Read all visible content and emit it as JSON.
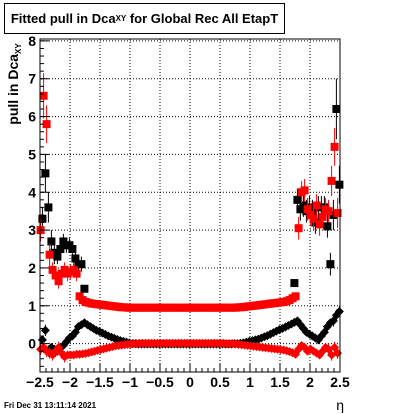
{
  "chart_data": {
    "type": "scatter",
    "title_main": "Fitted pull in Dca",
    "title_sub": "XY",
    "title_rest": " for Global Rec All EtapT",
    "ylabel_main": "pull in Dca",
    "ylabel_sub": "XY",
    "xlabel": "η",
    "xlim": [
      -2.5,
      2.5
    ],
    "ylim": [
      -0.75,
      8.05
    ],
    "x_ticks": [
      -2.5,
      -2,
      -1.5,
      -1,
      -0.5,
      0,
      0.5,
      1,
      1.5,
      2,
      2.5
    ],
    "x_tick_labels": [
      "−2.5",
      "−2",
      "−1.5",
      "−1",
      "−0.5",
      "0",
      "0.5",
      "1",
      "1.5",
      "2",
      "2.5"
    ],
    "y_ticks": [
      0,
      1,
      2,
      3,
      4,
      5,
      6,
      7,
      8
    ],
    "y_tick_labels": [
      "0",
      "1",
      "2",
      "3",
      "4",
      "5",
      "6",
      "7",
      "8"
    ],
    "grid": true,
    "colors": {
      "black": "#000000",
      "red": "#ff0000"
    },
    "series": [
      {
        "color": "#000000",
        "marker": "square",
        "x": [
          -2.46,
          -2.41,
          -2.36,
          -2.31,
          -2.26,
          -2.21,
          -2.16,
          -2.11,
          -2.06,
          -2.01,
          -1.96,
          -1.91,
          -1.86,
          -1.81,
          -1.76,
          1.74,
          1.79,
          1.84,
          1.89,
          1.94,
          1.99,
          2.04,
          2.09,
          2.14,
          2.19,
          2.24,
          2.29,
          2.34,
          2.39,
          2.44,
          2.49
        ],
        "y": [
          3.3,
          4.5,
          3.6,
          2.7,
          2.4,
          2.3,
          2.5,
          2.7,
          2.6,
          2.6,
          2.5,
          2.25,
          2.1,
          2.1,
          1.45,
          1.6,
          3.8,
          3.55,
          3.65,
          3.5,
          3.6,
          3.5,
          3.2,
          3.6,
          3.6,
          3.6,
          3.1,
          2.1,
          3.4,
          6.2,
          4.2
        ],
        "yerr": [
          0.3,
          0.5,
          0.4,
          0.3,
          0.3,
          0.2,
          0.2,
          0.2,
          0.2,
          0.2,
          0.2,
          0.2,
          0.2,
          0.2,
          0.1,
          0.1,
          0.3,
          0.3,
          0.3,
          0.3,
          0.3,
          0.3,
          0.3,
          0.3,
          0.3,
          0.3,
          0.3,
          0.3,
          0.4,
          0.8,
          0.5
        ]
      },
      {
        "color": "#ff0000",
        "marker": "square",
        "x": [
          -2.49,
          -2.44,
          -2.39,
          -2.34,
          -2.29,
          -2.24,
          -2.19,
          -2.14,
          -2.09,
          -2.04,
          -1.99,
          -1.94,
          -1.89,
          -1.84,
          -1.79,
          -1.74,
          -1.69,
          -1.64,
          -1.59,
          -1.54,
          -1.49,
          -1.44,
          -1.39,
          -1.34,
          -1.29,
          -1.24,
          -1.19,
          -1.14,
          -1.09,
          -1.04,
          -0.99,
          -0.94,
          -0.89,
          -0.84,
          -0.79,
          -0.74,
          -0.69,
          -0.64,
          -0.59,
          -0.54,
          -0.49,
          -0.44,
          -0.39,
          -0.34,
          -0.29,
          -0.24,
          -0.19,
          -0.14,
          -0.09,
          -0.04,
          0.01,
          0.06,
          0.11,
          0.16,
          0.21,
          0.26,
          0.31,
          0.36,
          0.41,
          0.46,
          0.51,
          0.56,
          0.61,
          0.66,
          0.71,
          0.76,
          0.81,
          0.86,
          0.91,
          0.96,
          1.01,
          1.06,
          1.11,
          1.16,
          1.21,
          1.26,
          1.31,
          1.36,
          1.41,
          1.46,
          1.51,
          1.56,
          1.61,
          1.66,
          1.71,
          1.76,
          1.81,
          1.86,
          1.91,
          1.96,
          2.01,
          2.06,
          2.11,
          2.16,
          2.21,
          2.26,
          2.31,
          2.36,
          2.41,
          2.46
        ],
        "y": [
          3.0,
          6.55,
          5.8,
          2.35,
          1.95,
          1.8,
          1.65,
          1.85,
          1.95,
          1.85,
          1.9,
          1.95,
          1.85,
          1.25,
          1.15,
          1.1,
          1.08,
          1.06,
          1.05,
          1.04,
          1.03,
          1.02,
          1.01,
          1.0,
          0.99,
          0.98,
          0.97,
          0.96,
          0.96,
          0.95,
          0.95,
          0.95,
          0.95,
          0.95,
          0.95,
          0.95,
          0.95,
          0.95,
          0.95,
          0.95,
          0.95,
          0.95,
          0.95,
          0.95,
          0.95,
          0.95,
          0.95,
          0.95,
          0.95,
          0.95,
          0.95,
          0.95,
          0.95,
          0.95,
          0.95,
          0.95,
          0.95,
          0.95,
          0.95,
          0.95,
          0.95,
          0.95,
          0.95,
          0.95,
          0.95,
          0.95,
          0.96,
          0.96,
          0.97,
          0.98,
          0.99,
          1.0,
          1.01,
          1.02,
          1.03,
          1.04,
          1.05,
          1.06,
          1.07,
          1.08,
          1.09,
          1.1,
          1.12,
          1.15,
          1.2,
          1.25,
          3.05,
          4.0,
          4.05,
          3.55,
          3.4,
          3.3,
          3.65,
          3.15,
          3.35,
          3.55,
          3.5,
          4.3,
          5.2,
          3.45
        ],
        "yerr": [
          0.3,
          0.6,
          0.5,
          0.3,
          0.2,
          0.2,
          0.2,
          0.2,
          0.2,
          0.2,
          0.2,
          0.2,
          0.2,
          0.1,
          0.1,
          0.05,
          0.05,
          0.05,
          0.05,
          0.05,
          0.05,
          0.05,
          0.05,
          0.05,
          0.05,
          0.05,
          0.05,
          0.05,
          0.05,
          0.05,
          0.05,
          0.05,
          0.05,
          0.05,
          0.05,
          0.05,
          0.05,
          0.05,
          0.05,
          0.05,
          0.05,
          0.05,
          0.05,
          0.05,
          0.05,
          0.05,
          0.05,
          0.05,
          0.05,
          0.05,
          0.05,
          0.05,
          0.05,
          0.05,
          0.05,
          0.05,
          0.05,
          0.05,
          0.05,
          0.05,
          0.05,
          0.05,
          0.05,
          0.05,
          0.05,
          0.05,
          0.05,
          0.05,
          0.05,
          0.05,
          0.05,
          0.05,
          0.05,
          0.05,
          0.05,
          0.05,
          0.05,
          0.05,
          0.05,
          0.05,
          0.05,
          0.05,
          0.05,
          0.05,
          0.1,
          0.1,
          0.3,
          0.3,
          0.3,
          0.3,
          0.3,
          0.3,
          0.3,
          0.3,
          0.3,
          0.3,
          0.3,
          0.4,
          0.5,
          0.4
        ]
      },
      {
        "color": "#000000",
        "marker": "diamond",
        "x": [
          -2.46,
          -2.41,
          -2.36,
          -2.31,
          -2.26,
          -2.21,
          -2.16,
          -2.11,
          -2.06,
          -2.01,
          -1.96,
          -1.91,
          -1.86,
          -1.81,
          -1.76,
          -1.71,
          -1.66,
          -1.61,
          -1.56,
          -1.51,
          -1.46,
          -1.41,
          -1.36,
          -1.31,
          -1.26,
          -1.21,
          -1.16,
          -1.11,
          -1.06,
          -1.01,
          -0.96,
          -0.91,
          -0.86,
          -0.81,
          -0.76,
          -0.71,
          -0.66,
          -0.61,
          -0.56,
          -0.51,
          -0.46,
          -0.41,
          -0.36,
          -0.31,
          -0.26,
          -0.21,
          -0.16,
          -0.11,
          -0.06,
          -0.01,
          0.04,
          0.09,
          0.14,
          0.19,
          0.24,
          0.29,
          0.34,
          0.39,
          0.44,
          0.49,
          0.54,
          0.59,
          0.64,
          0.69,
          0.74,
          0.79,
          0.84,
          0.89,
          0.94,
          0.99,
          1.04,
          1.09,
          1.14,
          1.19,
          1.24,
          1.29,
          1.34,
          1.39,
          1.44,
          1.49,
          1.54,
          1.59,
          1.64,
          1.69,
          1.74,
          1.79,
          1.84,
          1.89,
          1.94,
          1.99,
          2.04,
          2.09,
          2.14,
          2.19,
          2.24,
          2.29,
          2.34,
          2.39,
          2.44,
          2.49
        ],
        "y": [
          0.1,
          0.35,
          -0.2,
          -0.1,
          -0.15,
          -0.2,
          -0.1,
          -0.05,
          0.05,
          0.15,
          0.2,
          0.3,
          0.45,
          0.5,
          0.55,
          0.5,
          0.45,
          0.4,
          0.35,
          0.32,
          0.28,
          0.24,
          0.2,
          0.17,
          0.14,
          0.11,
          0.08,
          0.06,
          0.04,
          0.02,
          0.0,
          0.0,
          -0.01,
          -0.01,
          -0.01,
          -0.01,
          -0.01,
          -0.01,
          -0.01,
          -0.01,
          -0.01,
          -0.01,
          -0.01,
          -0.01,
          -0.01,
          -0.01,
          -0.01,
          -0.01,
          -0.01,
          -0.01,
          -0.01,
          -0.01,
          -0.01,
          -0.01,
          -0.01,
          -0.01,
          -0.01,
          -0.01,
          -0.01,
          -0.01,
          -0.01,
          -0.01,
          -0.01,
          -0.01,
          0.0,
          0.0,
          0.01,
          0.02,
          0.04,
          0.06,
          0.08,
          0.1,
          0.12,
          0.15,
          0.18,
          0.21,
          0.25,
          0.29,
          0.33,
          0.37,
          0.4,
          0.44,
          0.48,
          0.52,
          0.56,
          0.6,
          0.5,
          0.4,
          0.3,
          0.25,
          0.2,
          0.15,
          0.1,
          0.2,
          0.3,
          0.45,
          0.55,
          0.6,
          0.75,
          0.85
        ],
        "yerr": [
          0.1,
          0.15,
          0.15,
          0.1,
          0.1,
          0.1,
          0.1,
          0.1,
          0.1,
          0.1,
          0.1,
          0.1,
          0.05,
          0.05,
          0.05,
          0.03,
          0.03,
          0.03,
          0.03,
          0.03,
          0.03,
          0.03,
          0.03,
          0.03,
          0.03,
          0.03,
          0.03,
          0.03,
          0.03,
          0.03,
          0.03,
          0.03,
          0.03,
          0.03,
          0.03,
          0.03,
          0.03,
          0.03,
          0.03,
          0.03,
          0.03,
          0.03,
          0.03,
          0.03,
          0.03,
          0.03,
          0.03,
          0.03,
          0.03,
          0.03,
          0.03,
          0.03,
          0.03,
          0.03,
          0.03,
          0.03,
          0.03,
          0.03,
          0.03,
          0.03,
          0.03,
          0.03,
          0.03,
          0.03,
          0.03,
          0.03,
          0.03,
          0.03,
          0.03,
          0.03,
          0.03,
          0.03,
          0.03,
          0.03,
          0.03,
          0.03,
          0.03,
          0.03,
          0.03,
          0.03,
          0.03,
          0.03,
          0.03,
          0.03,
          0.03,
          0.05,
          0.1,
          0.1,
          0.1,
          0.1,
          0.1,
          0.1,
          0.1,
          0.1,
          0.1,
          0.1,
          0.1,
          0.15,
          0.15,
          0.15
        ]
      },
      {
        "color": "#ff0000",
        "marker": "diamond",
        "x": [
          -2.49,
          -2.44,
          -2.39,
          -2.34,
          -2.29,
          -2.24,
          -2.19,
          -2.14,
          -2.09,
          -2.04,
          -1.99,
          -1.94,
          -1.89,
          -1.84,
          -1.79,
          -1.74,
          -1.69,
          -1.64,
          -1.59,
          -1.54,
          -1.49,
          -1.44,
          -1.39,
          -1.34,
          -1.29,
          -1.24,
          -1.19,
          -1.14,
          -1.09,
          -1.04,
          -0.99,
          -0.94,
          -0.89,
          -0.84,
          -0.79,
          -0.74,
          -0.69,
          -0.64,
          -0.59,
          -0.54,
          -0.49,
          -0.44,
          -0.39,
          -0.34,
          -0.29,
          -0.24,
          -0.19,
          -0.14,
          -0.09,
          -0.04,
          0.01,
          0.06,
          0.11,
          0.16,
          0.21,
          0.26,
          0.31,
          0.36,
          0.41,
          0.46,
          0.51,
          0.56,
          0.61,
          0.66,
          0.71,
          0.76,
          0.81,
          0.86,
          0.91,
          0.96,
          1.01,
          1.06,
          1.11,
          1.16,
          1.21,
          1.26,
          1.31,
          1.36,
          1.41,
          1.46,
          1.51,
          1.56,
          1.61,
          1.66,
          1.71,
          1.76,
          1.81,
          1.86,
          1.91,
          1.96,
          2.01,
          2.06,
          2.11,
          2.16,
          2.21,
          2.26,
          2.31,
          2.36,
          2.41,
          2.46
        ],
        "y": [
          -0.15,
          -0.1,
          -0.2,
          -0.25,
          -0.3,
          -0.2,
          -0.1,
          -0.25,
          -0.35,
          -0.3,
          -0.3,
          -0.3,
          -0.28,
          -0.28,
          -0.27,
          -0.26,
          -0.24,
          -0.22,
          -0.2,
          -0.18,
          -0.16,
          -0.14,
          -0.12,
          -0.1,
          -0.08,
          -0.06,
          -0.05,
          -0.04,
          -0.03,
          -0.02,
          -0.01,
          0.0,
          0.0,
          0.01,
          0.01,
          0.01,
          0.01,
          0.01,
          0.01,
          0.01,
          0.01,
          0.01,
          0.01,
          0.01,
          0.01,
          0.01,
          0.01,
          0.01,
          0.01,
          0.01,
          0.01,
          0.01,
          0.01,
          0.01,
          0.01,
          0.01,
          0.01,
          0.01,
          0.01,
          0.01,
          0.01,
          0.01,
          0.0,
          0.0,
          0.0,
          -0.01,
          -0.02,
          -0.03,
          -0.04,
          -0.05,
          -0.06,
          -0.07,
          -0.08,
          -0.09,
          -0.1,
          -0.11,
          -0.12,
          -0.13,
          -0.14,
          -0.15,
          -0.16,
          -0.17,
          -0.19,
          -0.21,
          -0.24,
          -0.28,
          -0.15,
          -0.05,
          -0.1,
          -0.2,
          -0.15,
          -0.2,
          -0.25,
          -0.3,
          -0.2,
          -0.1,
          -0.15,
          -0.3,
          -0.1,
          -0.25
        ],
        "yerr": [
          0.15,
          0.15,
          0.15,
          0.15,
          0.15,
          0.15,
          0.15,
          0.15,
          0.15,
          0.1,
          0.1,
          0.1,
          0.05,
          0.05,
          0.05,
          0.03,
          0.03,
          0.03,
          0.03,
          0.03,
          0.03,
          0.03,
          0.03,
          0.03,
          0.03,
          0.03,
          0.03,
          0.03,
          0.03,
          0.03,
          0.03,
          0.03,
          0.03,
          0.03,
          0.03,
          0.03,
          0.03,
          0.03,
          0.03,
          0.03,
          0.03,
          0.03,
          0.03,
          0.03,
          0.03,
          0.03,
          0.03,
          0.03,
          0.03,
          0.03,
          0.03,
          0.03,
          0.03,
          0.03,
          0.03,
          0.03,
          0.03,
          0.03,
          0.03,
          0.03,
          0.03,
          0.03,
          0.03,
          0.03,
          0.03,
          0.03,
          0.03,
          0.03,
          0.03,
          0.03,
          0.03,
          0.03,
          0.03,
          0.03,
          0.03,
          0.03,
          0.03,
          0.03,
          0.03,
          0.03,
          0.03,
          0.03,
          0.03,
          0.03,
          0.05,
          0.05,
          0.1,
          0.1,
          0.1,
          0.1,
          0.1,
          0.1,
          0.1,
          0.1,
          0.1,
          0.1,
          0.15,
          0.15,
          0.15,
          0.15
        ]
      }
    ]
  },
  "timestamp": "Fri Dec 31 13:11:14 2021"
}
